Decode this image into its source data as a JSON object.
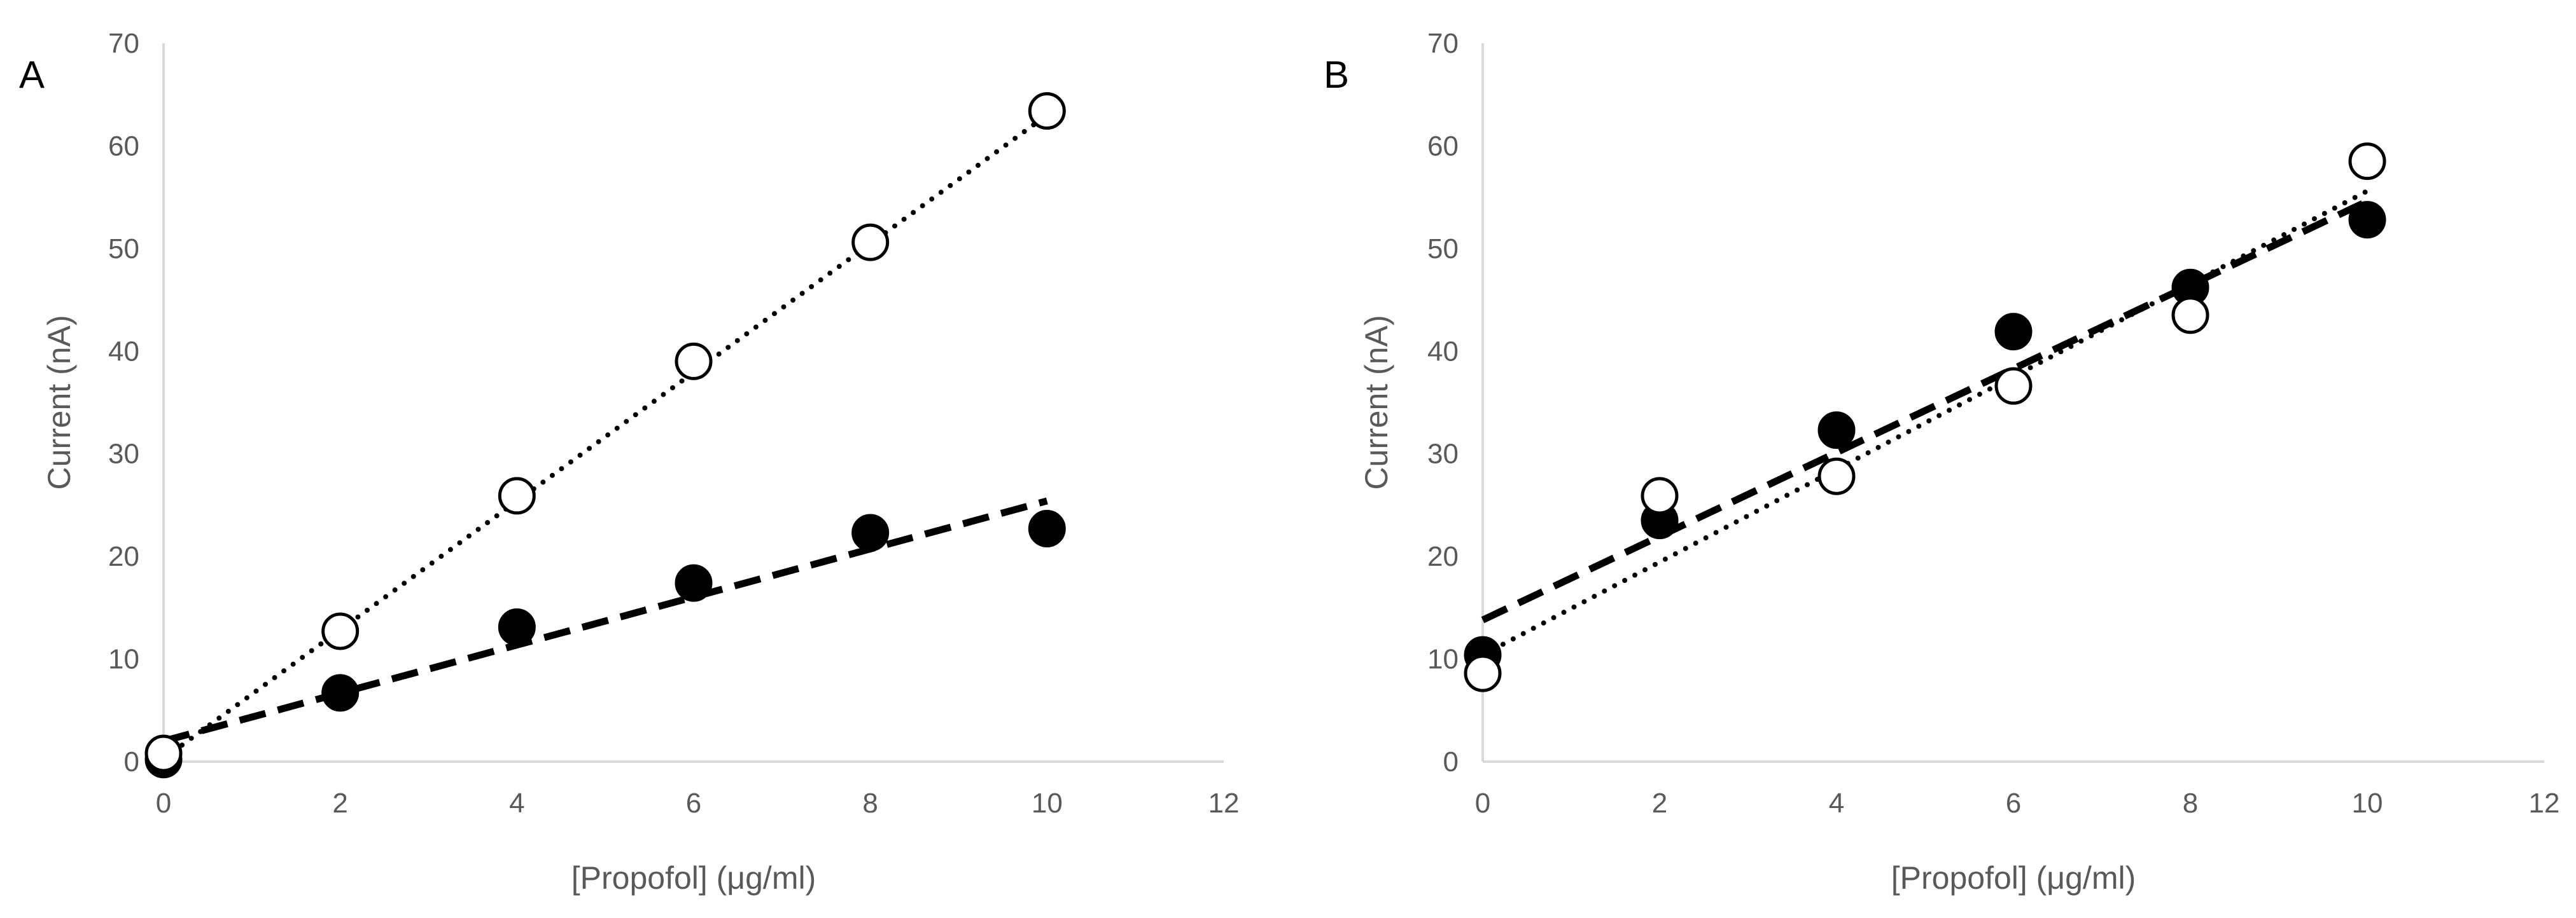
{
  "chart_data": [
    {
      "type": "scatter",
      "panel_label": "A",
      "xlabel": "[Propofol] (μg/ml)",
      "ylabel": "Current (nA)",
      "xlim": [
        0,
        12
      ],
      "ylim": [
        0,
        70
      ],
      "xticks": [
        0,
        2,
        4,
        6,
        8,
        10,
        12
      ],
      "yticks": [
        0,
        10,
        20,
        30,
        40,
        50,
        60,
        70
      ],
      "grid": false,
      "legend": "none",
      "series": [
        {
          "marker": "filled-circle",
          "x": [
            0,
            2,
            4,
            6,
            8,
            10
          ],
          "y": [
            0.2,
            6.7,
            13.1,
            17.4,
            22.3,
            22.7
          ],
          "trendline": {
            "style": "dashed",
            "x": [
              0,
              10
            ],
            "y": [
              2.0,
              25.4
            ]
          }
        },
        {
          "marker": "open-circle",
          "x": [
            0,
            2,
            4,
            6,
            8,
            10
          ],
          "y": [
            0.8,
            12.7,
            25.9,
            39.0,
            50.6,
            63.4
          ],
          "trendline": {
            "style": "dotted",
            "x": [
              0,
              10
            ],
            "y": [
              0.3,
              63.0
            ]
          }
        }
      ]
    },
    {
      "type": "scatter",
      "panel_label": "B",
      "xlabel": "[Propofol] (μg/ml)",
      "ylabel": "Current (nA)",
      "xlim": [
        0,
        12
      ],
      "ylim": [
        0,
        70
      ],
      "xticks": [
        0,
        2,
        4,
        6,
        8,
        10,
        12
      ],
      "yticks": [
        0,
        10,
        20,
        30,
        40,
        50,
        60,
        70
      ],
      "grid": false,
      "legend": "none",
      "series": [
        {
          "marker": "filled-circle",
          "x": [
            0,
            2,
            4,
            6,
            8,
            10
          ],
          "y": [
            10.4,
            23.5,
            32.3,
            41.9,
            46.2,
            52.8
          ],
          "trendline": {
            "style": "dashed",
            "x": [
              0,
              10
            ],
            "y": [
              13.8,
              54.6
            ]
          }
        },
        {
          "marker": "open-circle",
          "x": [
            0,
            2,
            4,
            6,
            8,
            10
          ],
          "y": [
            8.6,
            25.9,
            27.8,
            36.6,
            43.5,
            58.5
          ],
          "trendline": {
            "style": "dotted",
            "x": [
              0,
              10
            ],
            "y": [
              10.4,
              55.6
            ]
          }
        }
      ]
    }
  ]
}
